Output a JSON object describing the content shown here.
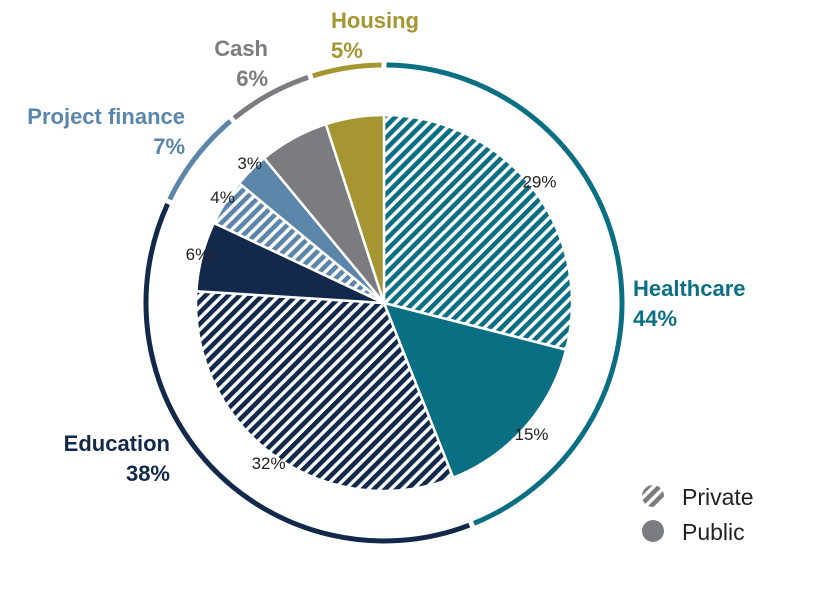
{
  "chart_data": {
    "type": "pie",
    "categories": [
      {
        "name": "Healthcare",
        "percent_label": "44%",
        "value": 44,
        "color": "#0b6f84"
      },
      {
        "name": "Education",
        "percent_label": "38%",
        "value": 38,
        "color": "#13294b"
      },
      {
        "name": "Project finance",
        "percent_label": "7%",
        "value": 7,
        "color": "#5b86aa"
      },
      {
        "name": "Cash",
        "percent_label": "6%",
        "value": 6,
        "color": "#7b7c80"
      },
      {
        "name": "Housing",
        "percent_label": "5%",
        "value": 5,
        "color": "#a69631"
      }
    ],
    "slices": [
      {
        "category": "Healthcare",
        "type": "Private",
        "value": 29,
        "label": "29%",
        "color": "#0b6f84"
      },
      {
        "category": "Healthcare",
        "type": "Public",
        "value": 15,
        "label": "15%",
        "color": "#0b6f84"
      },
      {
        "category": "Education",
        "type": "Private",
        "value": 32,
        "label": "32%",
        "color": "#13294b"
      },
      {
        "category": "Education",
        "type": "Public",
        "value": 6,
        "label": "6%",
        "color": "#13294b"
      },
      {
        "category": "Project finance",
        "type": "Private",
        "value": 4,
        "label": "4%",
        "color": "#5b86aa"
      },
      {
        "category": "Project finance",
        "type": "Public",
        "value": 3,
        "label": "3%",
        "color": "#5b86aa"
      },
      {
        "category": "Cash",
        "type": "Public",
        "value": 6,
        "label": "",
        "color": "#7b7c80"
      },
      {
        "category": "Housing",
        "type": "Public",
        "value": 5,
        "label": "",
        "color": "#a69631"
      }
    ],
    "legend": {
      "position": "bottom-right",
      "items": [
        {
          "label": "Private",
          "pattern": "hatched"
        },
        {
          "label": "Public",
          "pattern": "solid"
        }
      ]
    }
  }
}
